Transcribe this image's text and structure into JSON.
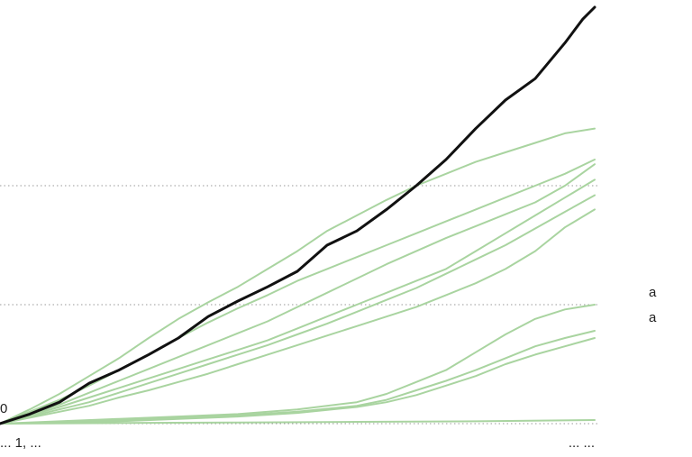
{
  "chart_data": {
    "type": "line",
    "title": "",
    "xlabel": "",
    "ylabel": "",
    "ylim": [
      0,
      350
    ],
    "grid": true,
    "x_ticks": [
      {
        "x": 0,
        "label": "... 1, ..."
      },
      {
        "x": 100,
        "label": "... ..."
      }
    ],
    "y_ticks": [
      {
        "value": 0,
        "label": "0"
      },
      {
        "value": 100,
        "label": ""
      },
      {
        "value": 200,
        "label": ""
      }
    ],
    "series": [
      {
        "name": "",
        "highlight": true,
        "color": "#111111",
        "x": [
          0,
          5,
          10,
          15,
          20,
          25,
          30,
          35,
          40,
          45,
          50,
          55,
          60,
          65,
          70,
          75,
          80,
          85,
          90,
          95,
          98,
          100
        ],
        "values": [
          0,
          8,
          18,
          34,
          45,
          58,
          72,
          90,
          103,
          115,
          128,
          150,
          162,
          180,
          200,
          222,
          248,
          272,
          290,
          320,
          340,
          350
        ]
      },
      {
        "name": "",
        "color": "#a9d4a0",
        "x": [
          0,
          5,
          10,
          15,
          20,
          25,
          30,
          35,
          40,
          45,
          50,
          55,
          60,
          65,
          70,
          75,
          80,
          85,
          90,
          95,
          100
        ],
        "values": [
          0,
          12,
          25,
          40,
          55,
          72,
          88,
          102,
          115,
          130,
          145,
          162,
          175,
          188,
          200,
          210,
          220,
          228,
          236,
          244,
          248
        ]
      },
      {
        "name": "",
        "color": "#a9d4a0",
        "x": [
          0,
          5,
          10,
          15,
          20,
          25,
          30,
          35,
          40,
          45,
          50,
          55,
          60,
          65,
          70,
          75,
          80,
          85,
          90,
          95,
          100
        ],
        "values": [
          0,
          10,
          20,
          32,
          45,
          58,
          72,
          85,
          97,
          108,
          120,
          130,
          140,
          150,
          160,
          170,
          180,
          190,
          200,
          210,
          222
        ]
      },
      {
        "name": "",
        "color": "#a9d4a0",
        "x": [
          0,
          5,
          10,
          15,
          20,
          25,
          30,
          35,
          40,
          45,
          50,
          55,
          60,
          65,
          70,
          75,
          80,
          85,
          90,
          95,
          100
        ],
        "values": [
          0,
          8,
          16,
          26,
          36,
          46,
          56,
          66,
          76,
          86,
          98,
          110,
          122,
          134,
          145,
          156,
          166,
          176,
          186,
          200,
          218
        ]
      },
      {
        "name": "",
        "color": "#a9d4a0",
        "x": [
          0,
          5,
          10,
          15,
          20,
          25,
          30,
          35,
          40,
          45,
          50,
          55,
          60,
          65,
          70,
          75,
          80,
          85,
          90,
          95,
          100
        ],
        "values": [
          0,
          7,
          14,
          22,
          30,
          38,
          46,
          54,
          62,
          70,
          80,
          90,
          100,
          110,
          120,
          130,
          145,
          160,
          175,
          190,
          205
        ]
      },
      {
        "name": "",
        "color": "#a9d4a0",
        "x": [
          0,
          5,
          10,
          15,
          20,
          25,
          30,
          35,
          40,
          45,
          50,
          55,
          60,
          65,
          70,
          75,
          80,
          85,
          90,
          95,
          100
        ],
        "values": [
          0,
          6,
          12,
          18,
          26,
          34,
          42,
          50,
          58,
          66,
          75,
          84,
          94,
          104,
          114,
          126,
          138,
          150,
          164,
          178,
          192
        ]
      },
      {
        "name": "",
        "color": "#a9d4a0",
        "x": [
          0,
          5,
          10,
          15,
          20,
          25,
          30,
          35,
          40,
          45,
          50,
          55,
          60,
          65,
          70,
          75,
          80,
          85,
          90,
          95,
          100
        ],
        "values": [
          0,
          5,
          10,
          15,
          22,
          28,
          35,
          42,
          50,
          58,
          66,
          74,
          82,
          90,
          98,
          108,
          118,
          130,
          145,
          165,
          180
        ]
      },
      {
        "name": "",
        "color": "#a9d4a0",
        "x": [
          0,
          10,
          20,
          30,
          40,
          50,
          60,
          65,
          70,
          75,
          80,
          85,
          90,
          95,
          100
        ],
        "values": [
          0,
          2,
          4,
          6,
          8,
          12,
          18,
          25,
          35,
          45,
          60,
          75,
          88,
          96,
          100
        ]
      },
      {
        "name": "",
        "color": "#a9d4a0",
        "x": [
          0,
          10,
          20,
          30,
          40,
          50,
          60,
          65,
          70,
          75,
          80,
          85,
          90,
          95,
          100
        ],
        "values": [
          0,
          1,
          3,
          5,
          7,
          10,
          15,
          20,
          28,
          36,
          45,
          55,
          65,
          72,
          78
        ]
      },
      {
        "name": "",
        "color": "#a9d4a0",
        "x": [
          0,
          10,
          20,
          30,
          40,
          50,
          60,
          65,
          70,
          75,
          80,
          85,
          90,
          95,
          100
        ],
        "values": [
          0,
          1,
          2,
          4,
          6,
          9,
          14,
          18,
          24,
          32,
          40,
          50,
          58,
          65,
          72
        ]
      },
      {
        "name": "",
        "color": "#a9d4a0",
        "x": [
          0,
          20,
          40,
          60,
          80,
          100
        ],
        "values": [
          0,
          0.5,
          1,
          1.5,
          2,
          3
        ]
      }
    ],
    "end_labels": [
      "",
      "",
      "",
      "",
      "",
      "",
      "a",
      "a",
      "",
      ""
    ]
  }
}
